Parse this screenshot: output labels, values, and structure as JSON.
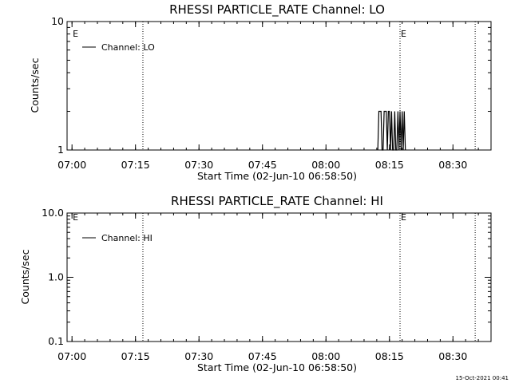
{
  "chart_data": [
    {
      "type": "line",
      "title": "RHESSI PARTICLE_RATE Channel: LO",
      "xlabel": "Start Time (02-Jun-10 06:58:50)",
      "ylabel": "Counts/sec",
      "y_scale": "log",
      "ylim": [
        1,
        10
      ],
      "y_ticks": [
        1,
        10
      ],
      "y_tick_labels": [
        "1",
        "10"
      ],
      "x_ticks": [
        "07:00",
        "07:15",
        "07:30",
        "07:45",
        "08:00",
        "08:15",
        "08:30"
      ],
      "legend": {
        "position": "top-left",
        "entries": [
          "Channel: LO"
        ]
      },
      "event_lines": [
        "07:16:45",
        "08:17:30",
        "08:35:15"
      ],
      "event_markers": [
        {
          "label": "E",
          "time": "07:00"
        },
        {
          "label": "E",
          "time": "08:17:30"
        }
      ],
      "series": [
        {
          "name": "Channel: LO",
          "x": [
            "08:12:15",
            "08:12:30",
            "08:13:00",
            "08:13:15",
            "08:13:30",
            "08:13:45",
            "08:14:15",
            "08:14:30",
            "08:14:45",
            "08:15:00",
            "08:15:15",
            "08:15:30",
            "08:15:45",
            "08:16:00",
            "08:16:15",
            "08:16:30",
            "08:16:45",
            "08:17:00",
            "08:17:15",
            "08:17:30",
            "08:17:45",
            "08:18:00",
            "08:18:15",
            "08:18:30",
            "08:18:45"
          ],
          "y": [
            1,
            2,
            2,
            1,
            1,
            2,
            2,
            1,
            2,
            2,
            1,
            2,
            1,
            1,
            2,
            1,
            1,
            2,
            1,
            2,
            1,
            2,
            1,
            2,
            1
          ]
        }
      ]
    },
    {
      "type": "line",
      "title": "RHESSI PARTICLE_RATE Channel: HI",
      "xlabel": "Start Time (02-Jun-10 06:58:50)",
      "ylabel": "Counts/sec",
      "y_scale": "log",
      "ylim": [
        0.1,
        10
      ],
      "y_ticks": [
        0.1,
        1,
        10
      ],
      "y_tick_labels": [
        "0.1",
        "1.0",
        "10.0"
      ],
      "x_ticks": [
        "07:00",
        "07:15",
        "07:30",
        "07:45",
        "08:00",
        "08:15",
        "08:30"
      ],
      "legend": {
        "position": "top-left",
        "entries": [
          "Channel: HI"
        ]
      },
      "event_lines": [
        "07:16:45",
        "08:17:30",
        "08:35:15"
      ],
      "event_markers": [
        {
          "label": "E",
          "time": "07:00"
        },
        {
          "label": "E",
          "time": "08:17:30"
        }
      ],
      "series": [
        {
          "name": "Channel: HI",
          "x": [],
          "y": []
        }
      ]
    }
  ],
  "footer": {
    "timestamp": "15-Oct-2021 00:41"
  }
}
